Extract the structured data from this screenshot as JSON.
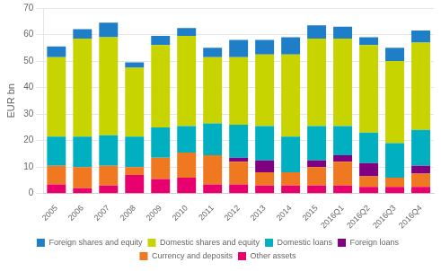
{
  "chart_data": {
    "type": "bar",
    "stacked": true,
    "categories": [
      "2005",
      "2006",
      "2007",
      "2008",
      "2009",
      "2010",
      "2011",
      "2012",
      "2013",
      "2014",
      "2015",
      "2016Q1",
      "2016Q2",
      "2016Q3",
      "2016Q4"
    ],
    "series": [
      {
        "name": "Other assets",
        "color": "#E8006E",
        "values": [
          3.5,
          2.0,
          3.0,
          7.0,
          5.5,
          6.0,
          3.5,
          3.5,
          3.0,
          3.0,
          3.0,
          3.0,
          2.5,
          2.5,
          2.5
        ]
      },
      {
        "name": "Currency and deposits",
        "color": "#F07820",
        "values": [
          7.0,
          8.0,
          7.5,
          3.0,
          8.0,
          9.5,
          11.0,
          8.5,
          5.0,
          5.0,
          7.0,
          9.0,
          4.0,
          3.5,
          5.0
        ]
      },
      {
        "name": "Foreign loans",
        "color": "#800080",
        "values": [
          0.0,
          0.0,
          0.0,
          0.0,
          0.0,
          0.0,
          0.0,
          1.5,
          4.5,
          0.0,
          2.5,
          2.5,
          5.0,
          0.0,
          3.0
        ]
      },
      {
        "name": "Domestic loans",
        "color": "#00B0C0",
        "values": [
          11.0,
          11.5,
          11.5,
          11.5,
          11.5,
          10.0,
          12.0,
          12.5,
          13.0,
          13.5,
          13.0,
          11.0,
          11.5,
          13.0,
          13.5
        ]
      },
      {
        "name": "Domestic shares and equity",
        "color": "#C8D400",
        "values": [
          30.0,
          37.0,
          37.0,
          26.0,
          31.0,
          34.0,
          25.0,
          25.5,
          27.0,
          31.0,
          33.0,
          33.0,
          33.0,
          31.0,
          33.0
        ]
      },
      {
        "name": "Foreign shares and equity",
        "color": "#1E7EC8",
        "values": [
          4.0,
          3.5,
          5.5,
          2.0,
          3.5,
          3.0,
          3.5,
          6.5,
          5.5,
          6.5,
          5.0,
          4.5,
          3.0,
          5.0,
          4.5
        ]
      }
    ],
    "ylabel": "EUR bn",
    "ylim": [
      0,
      70
    ],
    "yticks": [
      0,
      10,
      20,
      30,
      40,
      50,
      60,
      70
    ],
    "grid": true,
    "legend": "bottom"
  }
}
